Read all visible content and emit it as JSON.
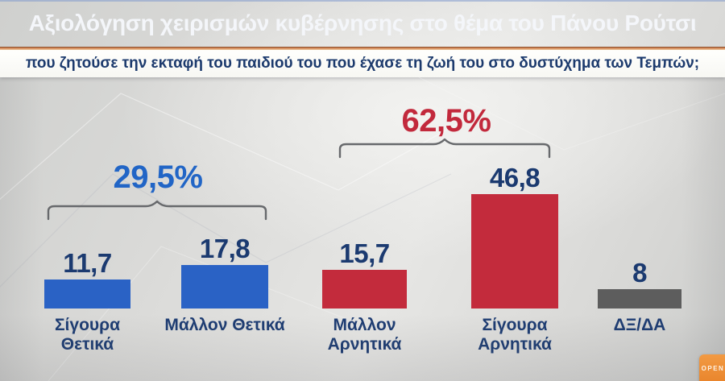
{
  "header": {
    "title": "Αξιολόγηση χειρισμών κυβέρνησης στο θέμα του Πάνου Ρούτσι",
    "bg_color": "#1e3a73",
    "text_color": "#f4f6fa"
  },
  "subtitle": {
    "text": "που ζητούσε την εκταφή του παιδιού του που έχασε τη ζωή του στο δυστύχημα των Τεμπών;",
    "text_color": "#1c3a6d"
  },
  "chart_data": {
    "type": "bar",
    "title": "Αξιολόγηση χειρισμών κυβέρνησης στο θέμα του Πάνου Ρούτσι",
    "subtitle": "που ζητούσε την εκταφή του παιδιού του που έχασε τη ζωή του στο δυστύχημα των Τεμπών;",
    "categories": [
      "Σίγουρα Θετικά",
      "Μάλλον Θετικά",
      "Μάλλον Αρνητικά",
      "Σίγουρα Αρνητικά",
      "ΔΞ/ΔΑ"
    ],
    "values": [
      11.7,
      17.8,
      15.7,
      46.8,
      8
    ],
    "value_labels": [
      "11,7",
      "17,8",
      "15,7",
      "46,8",
      "8"
    ],
    "bar_colors": [
      "#2a62c5",
      "#2a62c5",
      "#c32b3c",
      "#c32b3c",
      "#5d5d5d"
    ],
    "unit": "%",
    "ylim": [
      0,
      50
    ],
    "grid": false,
    "legend": "none",
    "group_annotations": [
      {
        "label": "29,5%",
        "color": "#2165c6",
        "covers": [
          "Σίγουρα Θετικά",
          "Μάλλον Θετικά"
        ],
        "meaning": "total positive"
      },
      {
        "label": "62,5%",
        "color": "#c2293c",
        "covers": [
          "Μάλλον Αρνητικά",
          "Σίγουρα Αρνητικά"
        ],
        "meaning": "total negative"
      }
    ]
  },
  "logo": {
    "text": "OPEN",
    "bg_color": "#e8832a"
  }
}
